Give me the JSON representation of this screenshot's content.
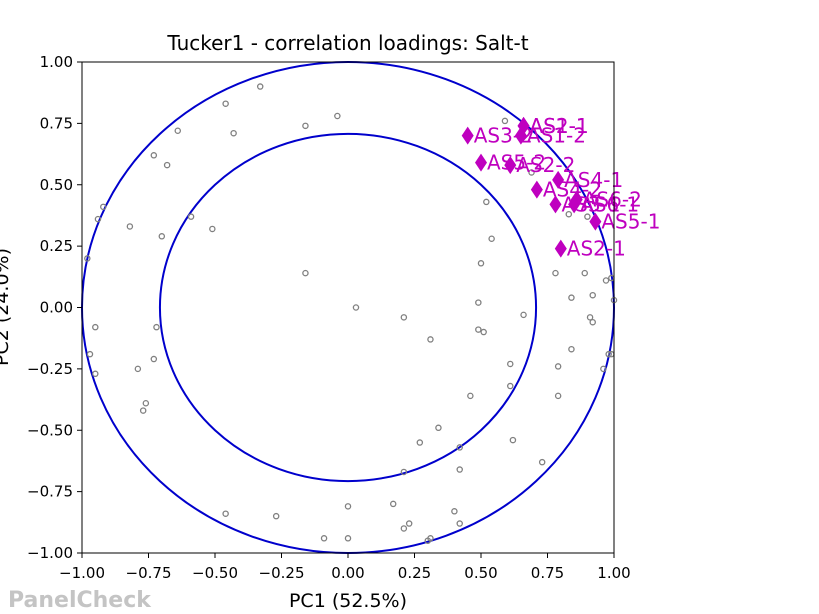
{
  "chart_data": {
    "type": "scatter",
    "title": "Tucker1 - correlation loadings: Salt-t",
    "xlabel": "PC1 (52.5%)",
    "ylabel": "PC2 (24.0%)",
    "xlim": [
      -1.0,
      1.0
    ],
    "ylim": [
      -1.0,
      1.0
    ],
    "x_ticks": [
      "−1.00",
      "−0.75",
      "−0.50",
      "−0.25",
      "0.00",
      "0.25",
      "0.50",
      "0.75",
      "1.00"
    ],
    "y_ticks": [
      "−1.00",
      "−0.75",
      "−0.50",
      "−0.25",
      "0.00",
      "0.25",
      "0.50",
      "0.75",
      "1.00"
    ],
    "grid": false,
    "circles": [
      {
        "radius": 1.0,
        "color": "#0000cc"
      },
      {
        "radius": 0.707,
        "color": "#0000cc"
      }
    ],
    "variables": {
      "color": "#808080",
      "points": [
        [
          -0.33,
          0.9
        ],
        [
          -0.46,
          0.83
        ],
        [
          -0.64,
          0.72
        ],
        [
          -0.43,
          0.71
        ],
        [
          -0.16,
          0.74
        ],
        [
          -0.04,
          0.78
        ],
        [
          -0.73,
          0.62
        ],
        [
          -0.68,
          0.58
        ],
        [
          -0.92,
          0.41
        ],
        [
          -0.94,
          0.36
        ],
        [
          -0.82,
          0.33
        ],
        [
          -0.59,
          0.37
        ],
        [
          -0.51,
          0.32
        ],
        [
          -0.7,
          0.29
        ],
        [
          -0.98,
          0.2
        ],
        [
          -0.16,
          0.14
        ],
        [
          0.03,
          0.0
        ],
        [
          0.21,
          -0.04
        ],
        [
          0.31,
          -0.13
        ],
        [
          -0.95,
          -0.08
        ],
        [
          -0.72,
          -0.08
        ],
        [
          -0.97,
          -0.19
        ],
        [
          -0.73,
          -0.21
        ],
        [
          -0.79,
          -0.25
        ],
        [
          -0.95,
          -0.27
        ],
        [
          -0.76,
          -0.39
        ],
        [
          -0.77,
          -0.42
        ],
        [
          0.52,
          0.43
        ],
        [
          0.54,
          0.28
        ],
        [
          0.5,
          0.18
        ],
        [
          0.49,
          0.02
        ],
        [
          0.49,
          -0.09
        ],
        [
          0.51,
          -0.1
        ],
        [
          0.66,
          -0.03
        ],
        [
          0.61,
          -0.23
        ],
        [
          0.61,
          -0.32
        ],
        [
          0.46,
          -0.36
        ],
        [
          0.34,
          -0.49
        ],
        [
          0.27,
          -0.55
        ],
        [
          0.42,
          -0.57
        ],
        [
          0.42,
          -0.66
        ],
        [
          0.62,
          -0.54
        ],
        [
          0.73,
          -0.63
        ],
        [
          0.21,
          -0.67
        ],
        [
          0.17,
          -0.8
        ],
        [
          0.23,
          -0.88
        ],
        [
          0.4,
          -0.83
        ],
        [
          0.42,
          -0.88
        ],
        [
          0.21,
          -0.9
        ],
        [
          0.3,
          -0.95
        ],
        [
          0.31,
          -0.94
        ],
        [
          0.0,
          -0.81
        ],
        [
          -0.09,
          -0.94
        ],
        [
          0.0,
          -0.94
        ],
        [
          -0.46,
          -0.84
        ],
        [
          -0.27,
          -0.85
        ],
        [
          0.59,
          0.76
        ],
        [
          0.69,
          0.55
        ],
        [
          0.78,
          0.14
        ],
        [
          0.89,
          0.14
        ],
        [
          0.84,
          0.04
        ],
        [
          0.92,
          0.05
        ],
        [
          0.91,
          -0.04
        ],
        [
          0.92,
          -0.06
        ],
        [
          0.97,
          0.11
        ],
        [
          0.99,
          0.12
        ],
        [
          1.0,
          0.03
        ],
        [
          0.98,
          -0.19
        ],
        [
          0.96,
          -0.25
        ],
        [
          0.79,
          -0.24
        ],
        [
          0.79,
          -0.36
        ],
        [
          0.84,
          -0.17
        ],
        [
          0.83,
          0.38
        ],
        [
          0.9,
          0.37
        ],
        [
          0.99,
          -0.19
        ]
      ]
    },
    "objects": {
      "color": "#bf00bf",
      "points": [
        {
          "label": "AS1-1",
          "x": 0.66,
          "y": 0.74
        },
        {
          "label": "AS2-1",
          "x": 0.66,
          "y": 0.74
        },
        {
          "label": "AS1-2",
          "x": 0.65,
          "y": 0.7
        },
        {
          "label": "AS3-2",
          "x": 0.45,
          "y": 0.7
        },
        {
          "label": "AS5-2",
          "x": 0.5,
          "y": 0.59
        },
        {
          "label": "AS2-2",
          "x": 0.61,
          "y": 0.58
        },
        {
          "label": "AS4-1",
          "x": 0.79,
          "y": 0.52
        },
        {
          "label": "AS4-2",
          "x": 0.71,
          "y": 0.48
        },
        {
          "label": "AS6-2",
          "x": 0.86,
          "y": 0.44
        },
        {
          "label": "AS6-1",
          "x": 0.85,
          "y": 0.42
        },
        {
          "label": "AS3-1",
          "x": 0.78,
          "y": 0.42
        },
        {
          "label": "AS5-1",
          "x": 0.93,
          "y": 0.35
        },
        {
          "label": "AS2-1",
          "x": 0.8,
          "y": 0.24
        }
      ]
    }
  },
  "watermark": "PanelCheck"
}
